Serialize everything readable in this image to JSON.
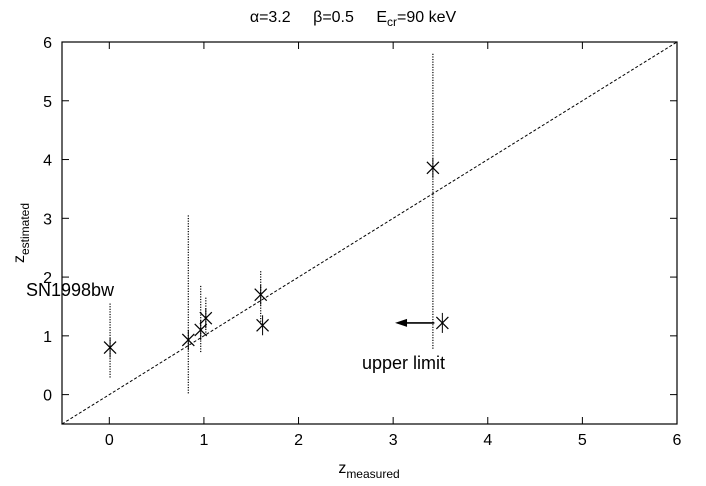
{
  "chart_data": {
    "type": "scatter",
    "title": {
      "alpha_label": "α=3.2",
      "beta_label": "β=0.5",
      "e_main": "E",
      "e_sub": "cr",
      "e_value": "=90 keV"
    },
    "xlabel": {
      "main": "z",
      "sub": "measured"
    },
    "ylabel": {
      "main": "z",
      "sub": "estimated"
    },
    "xlim": [
      -0.5,
      6
    ],
    "ylim": [
      -0.5,
      6
    ],
    "xticks": [
      0,
      1,
      2,
      3,
      4,
      5,
      6
    ],
    "yticks": [
      0,
      1,
      2,
      3,
      4,
      5,
      6
    ],
    "xtick_labels": [
      "0",
      "1",
      "2",
      "3",
      "4",
      "5",
      "6"
    ],
    "ytick_labels": [
      "0",
      "1",
      "2",
      "3",
      "4",
      "5",
      "6"
    ],
    "grid": false,
    "reference_line": {
      "style": "dashed",
      "from": [
        -0.5,
        -0.5
      ],
      "to": [
        6,
        6
      ]
    },
    "points": [
      {
        "x": 0.008,
        "y": 0.8
      },
      {
        "x": 0.835,
        "y": 0.93
      },
      {
        "x": 0.966,
        "y": 1.1
      },
      {
        "x": 1.02,
        "y": 1.3
      },
      {
        "x": 1.6,
        "y": 1.7
      },
      {
        "x": 1.62,
        "y": 1.18
      },
      {
        "x": 3.42,
        "y": 3.86
      },
      {
        "x": 3.52,
        "y": 1.22
      }
    ],
    "spreads": [
      {
        "x": 0.008,
        "ymin": 0.3,
        "ymax": 1.55
      },
      {
        "x": 0.835,
        "ymin": 0.0,
        "ymax": 3.05
      },
      {
        "x": 0.966,
        "ymin": 0.7,
        "ymax": 1.85
      },
      {
        "x": 1.02,
        "ymin": 1.0,
        "ymax": 1.65
      },
      {
        "x": 1.6,
        "ymin": 1.2,
        "ymax": 2.1
      },
      {
        "x": 3.42,
        "ymin": 0.8,
        "ymax": 5.8
      }
    ],
    "annotations": {
      "sn_label": "SN1998bw",
      "upper_limit_label": "upper limit",
      "arrow": {
        "from": [
          3.52,
          1.22
        ],
        "to": [
          3.02,
          1.22
        ]
      }
    }
  }
}
